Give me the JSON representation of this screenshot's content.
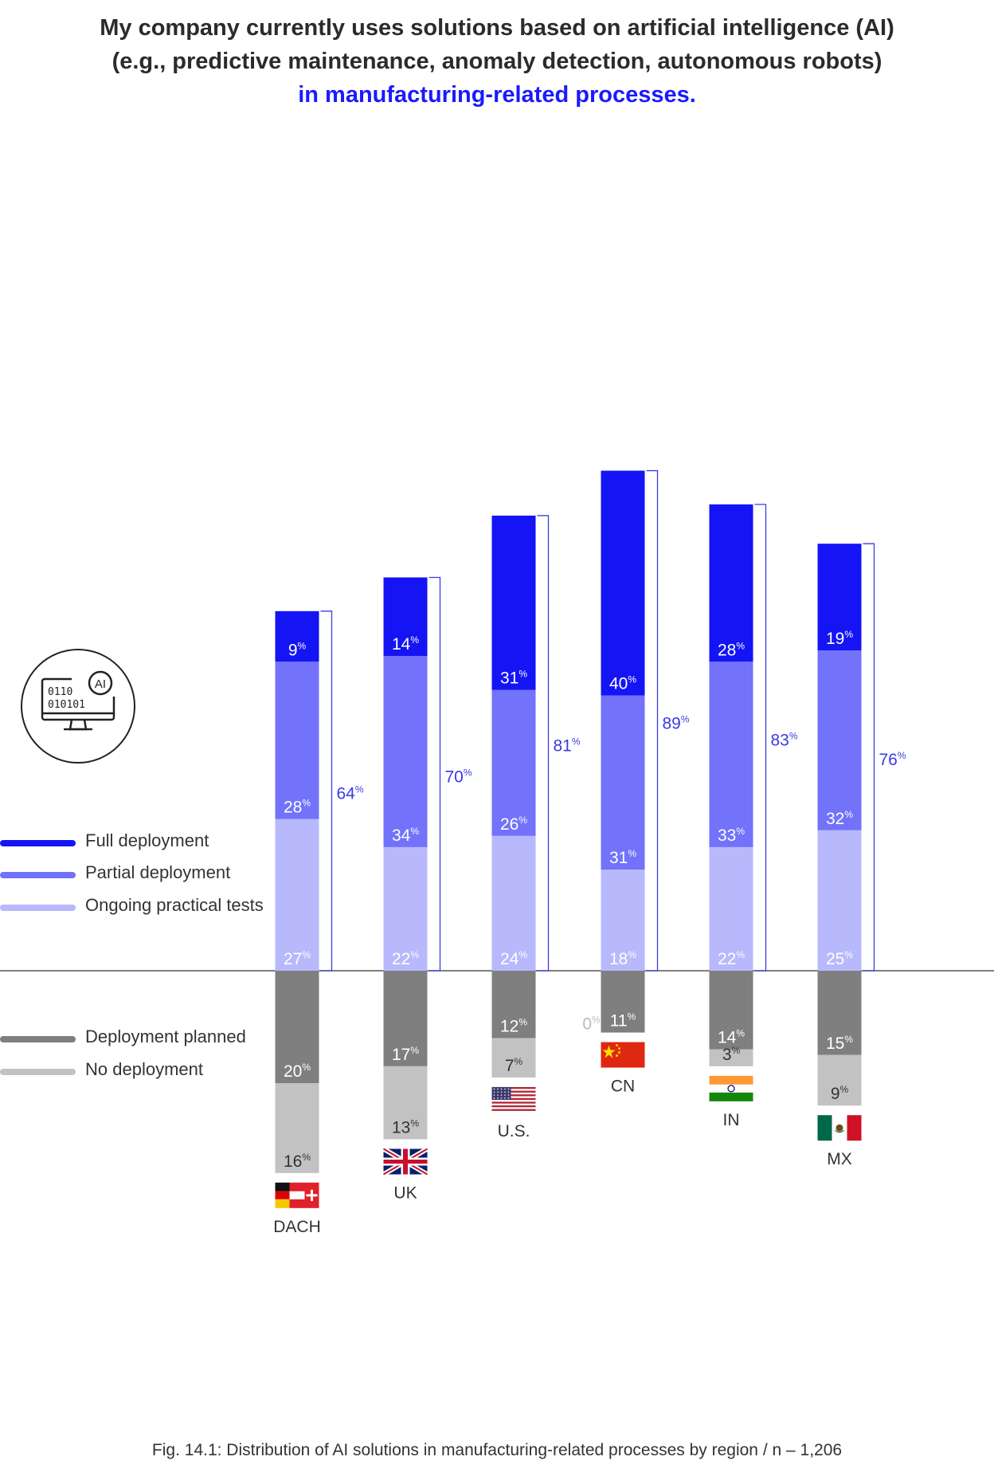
{
  "title": {
    "line1": "My company currently uses solutions based on artificial intelligence (AI)",
    "line2": "(e.g., predictive maintenance, anomaly detection, autonomous robots)",
    "line3": "in manufacturing-related processes."
  },
  "legend": {
    "full": "Full deployment",
    "partial": "Partial deployment",
    "tests": "Ongoing practical tests",
    "planned": "Deployment planned",
    "none": "No deployment"
  },
  "icon": {
    "name": "computer-ai-icon",
    "badge": "AI",
    "row1": "0110",
    "row2": "010101"
  },
  "caption": "Fig. 14.1: Distribution of AI solutions in manufacturing-related processes by region / n – 1,206",
  "colors": {
    "full": "#1414f5",
    "partial": "#7272fb",
    "tests": "#b8b8fd",
    "planned": "#7f7f7f",
    "none": "#c2c2c2",
    "total": "#3a3ae6"
  },
  "chart_data": {
    "type": "bar",
    "categories": [
      "DACH",
      "UK",
      "U.S.",
      "CN",
      "IN",
      "MX"
    ],
    "flags": [
      "dach-flag",
      "uk-flag",
      "us-flag",
      "cn-flag",
      "in-flag",
      "mx-flag"
    ],
    "unit": "%",
    "series": [
      {
        "name": "Full deployment",
        "values": [
          9,
          14,
          31,
          40,
          28,
          19
        ]
      },
      {
        "name": "Partial deployment",
        "values": [
          28,
          34,
          26,
          31,
          33,
          32
        ]
      },
      {
        "name": "Ongoing practical tests",
        "values": [
          27,
          22,
          24,
          18,
          22,
          25
        ]
      },
      {
        "name": "Deployment planned",
        "values": [
          20,
          17,
          12,
          11,
          14,
          15
        ]
      },
      {
        "name": "No deployment",
        "values": [
          16,
          13,
          7,
          0,
          3,
          9
        ]
      }
    ],
    "totals": [
      64,
      70,
      81,
      89,
      83,
      76
    ],
    "legend_position": "left",
    "grid": false
  }
}
